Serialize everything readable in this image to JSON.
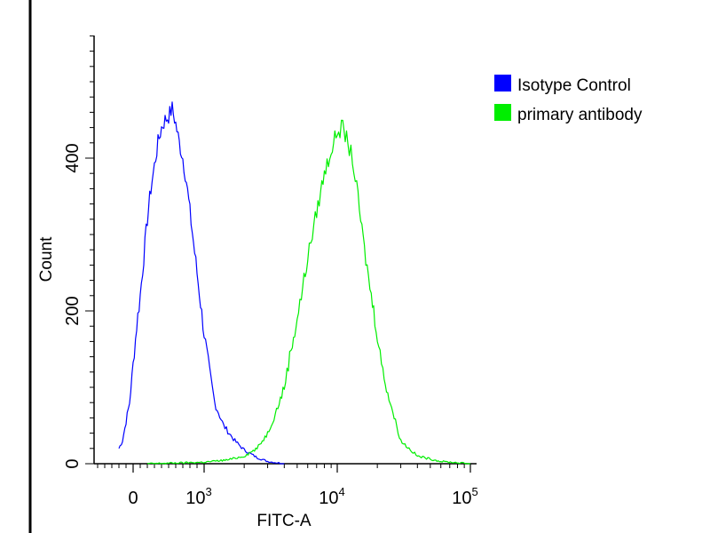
{
  "chart_data": {
    "type": "line",
    "xlabel": "FITC-A",
    "ylabel": "Count",
    "x_scale": "biexponential",
    "x_tick_labels": [
      {
        "base": "0",
        "exp": ""
      },
      {
        "base": "10",
        "exp": "3"
      },
      {
        "base": "10",
        "exp": "4"
      },
      {
        "base": "10",
        "exp": "5"
      }
    ],
    "y_tick_labels": [
      "0",
      "200",
      "400"
    ],
    "ylim": [
      0,
      560
    ],
    "grid": false,
    "legend_position": "top-right",
    "series": [
      {
        "name": "Isotype Control",
        "color": "#0000ff",
        "x": [
          -200,
          -150,
          -100,
          -50,
          0,
          50,
          100,
          150,
          200,
          250,
          300,
          350,
          400,
          450,
          500,
          550,
          600,
          650,
          700,
          750,
          800,
          850,
          900,
          950,
          1000,
          1100,
          1200,
          1400,
          1700,
          2000,
          2500,
          3000,
          4000
        ],
        "values": [
          20,
          30,
          55,
          80,
          130,
          180,
          220,
          270,
          320,
          360,
          390,
          420,
          440,
          450,
          455,
          465,
          445,
          420,
          400,
          370,
          330,
          290,
          250,
          210,
          170,
          120,
          80,
          50,
          30,
          18,
          8,
          3,
          0
        ]
      },
      {
        "name": "primary antibody",
        "color": "#00ee00",
        "x": [
          200,
          1000,
          1500,
          2000,
          2500,
          3000,
          3500,
          4000,
          4500,
          5000,
          5500,
          6000,
          6500,
          7000,
          8000,
          9000,
          10000,
          11000,
          12000,
          13000,
          14000,
          15000,
          16000,
          18000,
          20000,
          22000,
          25000,
          30000,
          40000,
          60000,
          100000
        ],
        "values": [
          0,
          2,
          5,
          10,
          20,
          40,
          70,
          100,
          150,
          190,
          230,
          270,
          300,
          330,
          380,
          410,
          435,
          440,
          420,
          400,
          360,
          320,
          280,
          220,
          170,
          120,
          80,
          30,
          10,
          3,
          0
        ]
      }
    ]
  },
  "legend": {
    "items": [
      {
        "label": "Isotype Control",
        "color": "#0000ff"
      },
      {
        "label": "primary antibody",
        "color": "#00ee00"
      }
    ]
  }
}
